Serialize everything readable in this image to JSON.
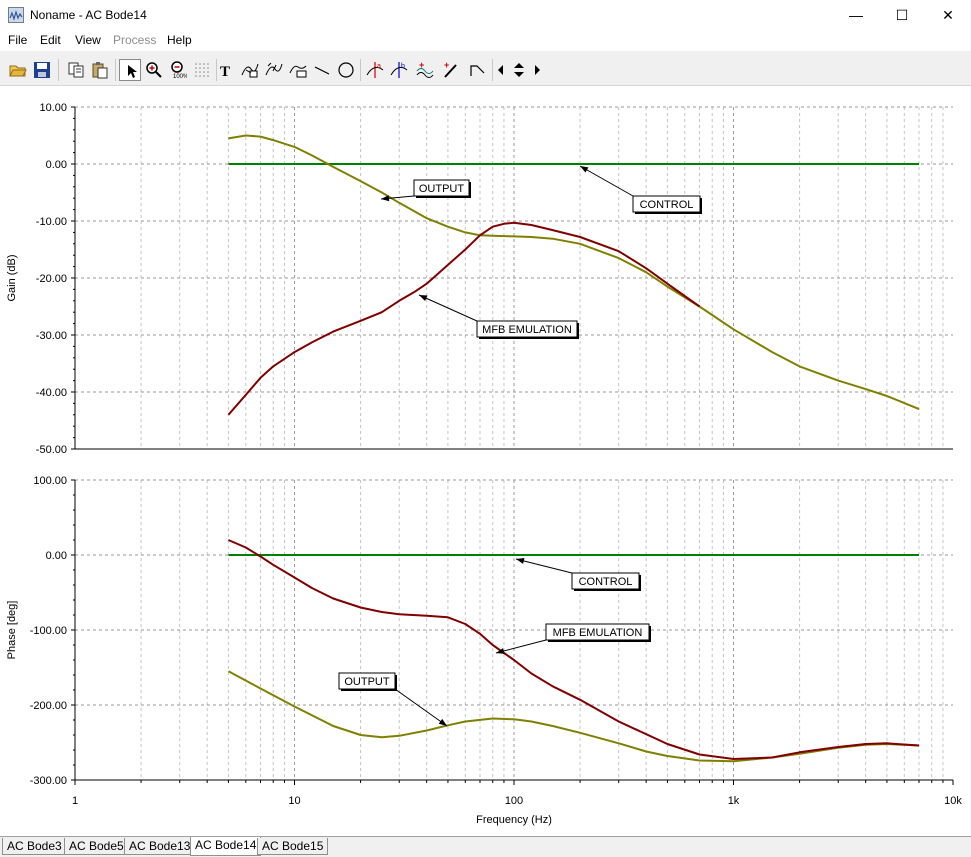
{
  "window": {
    "title": "Noname - AC Bode14",
    "minimize": "—",
    "maximize": "☐",
    "close": "✕"
  },
  "menu": [
    {
      "label": "File",
      "enabled": true
    },
    {
      "label": "Edit",
      "enabled": true
    },
    {
      "label": "View",
      "enabled": true
    },
    {
      "label": "Process",
      "enabled": false
    },
    {
      "label": "Help",
      "enabled": true
    }
  ],
  "toolbar": [
    {
      "icon": "open-folder-icon"
    },
    {
      "icon": "save-icon"
    },
    {
      "icon": "copy-icon"
    },
    {
      "icon": "paste-icon"
    },
    {
      "icon": "pointer-icon",
      "pressed": true
    },
    {
      "icon": "zoom-in-icon"
    },
    {
      "icon": "zoom-100-icon"
    },
    {
      "icon": "grid-icon"
    },
    {
      "icon": "text-tool-icon",
      "label": "T"
    },
    {
      "icon": "curve-label-a-icon"
    },
    {
      "icon": "curve-label-b-icon"
    },
    {
      "icon": "curve-label-c-icon"
    },
    {
      "icon": "line-tool-icon"
    },
    {
      "icon": "circle-tool-icon"
    },
    {
      "icon": "cursor-a-icon",
      "label": "a"
    },
    {
      "icon": "cursor-b-icon",
      "label": "b"
    },
    {
      "icon": "add-curve-icon"
    },
    {
      "icon": "probe-icon"
    },
    {
      "icon": "bode-asymptote-icon"
    },
    {
      "icon": "nav-left-icon"
    },
    {
      "icon": "nav-updown-icon"
    },
    {
      "icon": "nav-right-icon"
    }
  ],
  "colors": {
    "control": "#008000",
    "output": "#808000",
    "mfb": "#800000",
    "grid": "#bdbdbd"
  },
  "chart_data": [
    {
      "type": "line",
      "ylabel": "Gain (dB)",
      "xscale": "log",
      "xlim": [
        1,
        10000
      ],
      "ylim": [
        -50,
        10
      ],
      "yticks": [
        "10.00",
        "0.00",
        "-10.00",
        "-20.00",
        "-30.00",
        "-40.00",
        "-50.00"
      ],
      "grid": true,
      "series": [
        {
          "name": "CONTROL",
          "color": "#008000",
          "x": [
            5,
            7000
          ],
          "y": [
            0,
            0
          ]
        },
        {
          "name": "OUTPUT",
          "color": "#808000",
          "x": [
            5,
            6,
            7,
            8,
            10,
            12,
            15,
            20,
            25,
            30,
            40,
            50,
            60,
            70,
            80,
            100,
            120,
            150,
            200,
            300,
            400,
            500,
            700,
            1000,
            1500,
            2000,
            3000,
            4000,
            5000,
            7000
          ],
          "y": [
            4.5,
            5,
            4.8,
            4.2,
            3,
            1.5,
            -0.5,
            -3,
            -5,
            -6.8,
            -9.5,
            -11,
            -12,
            -12.5,
            -12.6,
            -12.7,
            -12.8,
            -13.1,
            -14,
            -16.5,
            -19,
            -21.5,
            -25,
            -29,
            -33,
            -35.5,
            -38,
            -39.5,
            -40.7,
            -43
          ]
        },
        {
          "name": "MFB EMULATION",
          "color": "#800000",
          "x": [
            5,
            6,
            7,
            8,
            10,
            12,
            15,
            20,
            25,
            30,
            35,
            40,
            50,
            60,
            70,
            80,
            90,
            100,
            120,
            150,
            200,
            300,
            400,
            500,
            700
          ],
          "y": [
            -44,
            -40.5,
            -37.5,
            -35.5,
            -33,
            -31.3,
            -29.4,
            -27.5,
            -26,
            -24,
            -22.5,
            -21,
            -17.7,
            -15,
            -12.5,
            -11,
            -10.5,
            -10.3,
            -10.7,
            -11.6,
            -12.8,
            -15.3,
            -18.3,
            -21,
            -25
          ]
        }
      ]
    },
    {
      "type": "line",
      "ylabel": "Phase [deg]",
      "xlabel": "Frequency (Hz)",
      "xscale": "log",
      "xlim": [
        1,
        10000
      ],
      "ylim": [
        -300,
        100
      ],
      "yticks": [
        "100.00",
        "0.00",
        "-100.00",
        "-200.00",
        "-300.00"
      ],
      "xticks": [
        "1",
        "10",
        "100",
        "1k",
        "10k"
      ],
      "grid": true,
      "series": [
        {
          "name": "CONTROL",
          "color": "#008000",
          "x": [
            5,
            7000
          ],
          "y": [
            0,
            0
          ]
        },
        {
          "name": "OUTPUT",
          "color": "#808000",
          "x": [
            5,
            7,
            10,
            15,
            20,
            25,
            30,
            40,
            50,
            60,
            80,
            100,
            120,
            150,
            200,
            300,
            400,
            500,
            700,
            1000,
            1500,
            2000,
            3000,
            4000,
            5000,
            7000
          ],
          "y": [
            -155,
            -178,
            -202,
            -228,
            -240,
            -243,
            -241,
            -234,
            -227,
            -222,
            -218,
            -219,
            -222,
            -228,
            -237,
            -251,
            -262,
            -268,
            -274,
            -275,
            -270,
            -265,
            -257,
            -253,
            -252,
            -254
          ]
        },
        {
          "name": "MFB EMULATION",
          "color": "#800000",
          "x": [
            5,
            6,
            7,
            8,
            10,
            12,
            15,
            20,
            25,
            30,
            40,
            50,
            60,
            70,
            80,
            100,
            120,
            150,
            200,
            300,
            500,
            700,
            1000,
            1500,
            2000,
            3000,
            4000,
            5000,
            7000
          ],
          "y": [
            20,
            10,
            -2,
            -13,
            -30,
            -44,
            -58,
            -70,
            -76,
            -79,
            -81,
            -83,
            -92,
            -105,
            -120,
            -140,
            -158,
            -175,
            -193,
            -222,
            -252,
            -266,
            -272,
            -270,
            -263,
            -256,
            -252,
            -251,
            -254
          ]
        }
      ]
    }
  ],
  "annotations": {
    "gain": [
      {
        "text": "OUTPUT"
      },
      {
        "text": "CONTROL"
      },
      {
        "text": "MFB EMULATION"
      }
    ],
    "phase": [
      {
        "text": "CONTROL"
      },
      {
        "text": "MFB EMULATION"
      },
      {
        "text": "OUTPUT"
      }
    ]
  },
  "tabs": [
    {
      "label": "AC Bode3",
      "active": false
    },
    {
      "label": "AC Bode5",
      "active": false
    },
    {
      "label": "AC Bode13",
      "active": false
    },
    {
      "label": "AC Bode14",
      "active": true
    },
    {
      "label": "AC Bode15",
      "active": false
    }
  ]
}
